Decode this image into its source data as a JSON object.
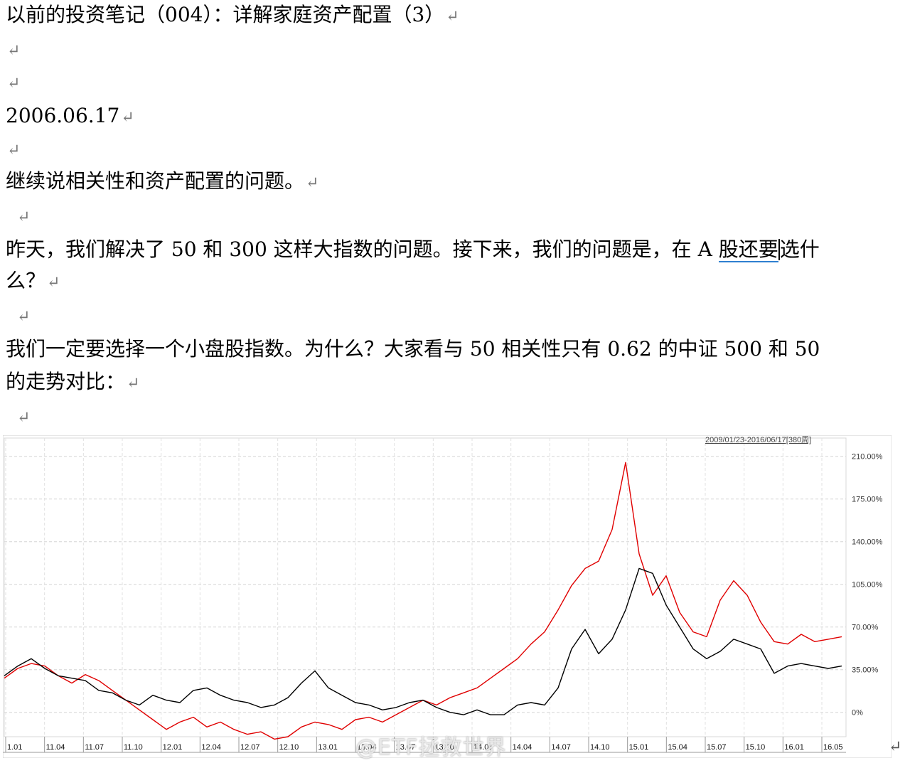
{
  "document": {
    "title": "以前的投资笔记（004）：详解家庭资产配置（3）",
    "para_mark": "↵",
    "date": "2006.06.17",
    "para1": "继续说相关性和资产配置的问题。",
    "para2_line1_a": "昨天，我们解决了 50 和 300 这样大指数的问题。接下来，我们的问题是，在 A ",
    "para2_line1_b": "股还要",
    "para2_line1_c": "选什",
    "para2_line2": "么？",
    "para3_line1": "我们一定要选择一个小盘股指数。为什么？大家看与 50 相关性只有 0.62 的中证 500 和 50",
    "para3_line2": "的走势对比："
  },
  "chart_data": {
    "type": "line",
    "range_label": "2009/01/23-2016/06/17[380周]",
    "x_ticks": [
      "1.01",
      "11.04",
      "11.07",
      "11.10",
      "12.01",
      "12.04",
      "12.07",
      "12.10",
      "13.01",
      "13.04",
      "13.07",
      "13.10",
      "14.01",
      "14.04",
      "14.07",
      "14.10",
      "15.01",
      "15.04",
      "15.07",
      "15.10",
      "16.01",
      "16.05"
    ],
    "y_ticks": [
      "210.00%",
      "175.00%",
      "140.00%",
      "105.00%",
      "70.00%",
      "35.00%",
      "0%"
    ],
    "ylim": [
      -20,
      225
    ],
    "series": [
      {
        "color": "#e00000",
        "values": [
          28,
          36,
          40,
          38,
          30,
          24,
          31,
          26,
          18,
          10,
          2,
          -6,
          -14,
          -8,
          -4,
          -12,
          -8,
          -14,
          -18,
          -16,
          -22,
          -20,
          -12,
          -8,
          -10,
          -14,
          -6,
          -4,
          -8,
          -2,
          4,
          10,
          6,
          12,
          16,
          20,
          28,
          36,
          44,
          56,
          66,
          84,
          104,
          118,
          124,
          150,
          205,
          130,
          96,
          112,
          82,
          66,
          62,
          92,
          108,
          96,
          74,
          58,
          56,
          64,
          58,
          60,
          62
        ]
      },
      {
        "color": "#000000",
        "values": [
          30,
          38,
          44,
          36,
          30,
          28,
          26,
          18,
          16,
          10,
          6,
          14,
          10,
          8,
          18,
          20,
          14,
          10,
          8,
          4,
          6,
          12,
          24,
          34,
          20,
          14,
          8,
          6,
          2,
          4,
          8,
          10,
          4,
          0,
          -2,
          2,
          -2,
          -2,
          6,
          8,
          6,
          20,
          52,
          68,
          48,
          60,
          84,
          118,
          114,
          88,
          70,
          52,
          44,
          50,
          60,
          56,
          52,
          32,
          38,
          40,
          38,
          36,
          38
        ]
      }
    ]
  },
  "watermark": "@ETF拯救世界",
  "end_mark": "↵"
}
